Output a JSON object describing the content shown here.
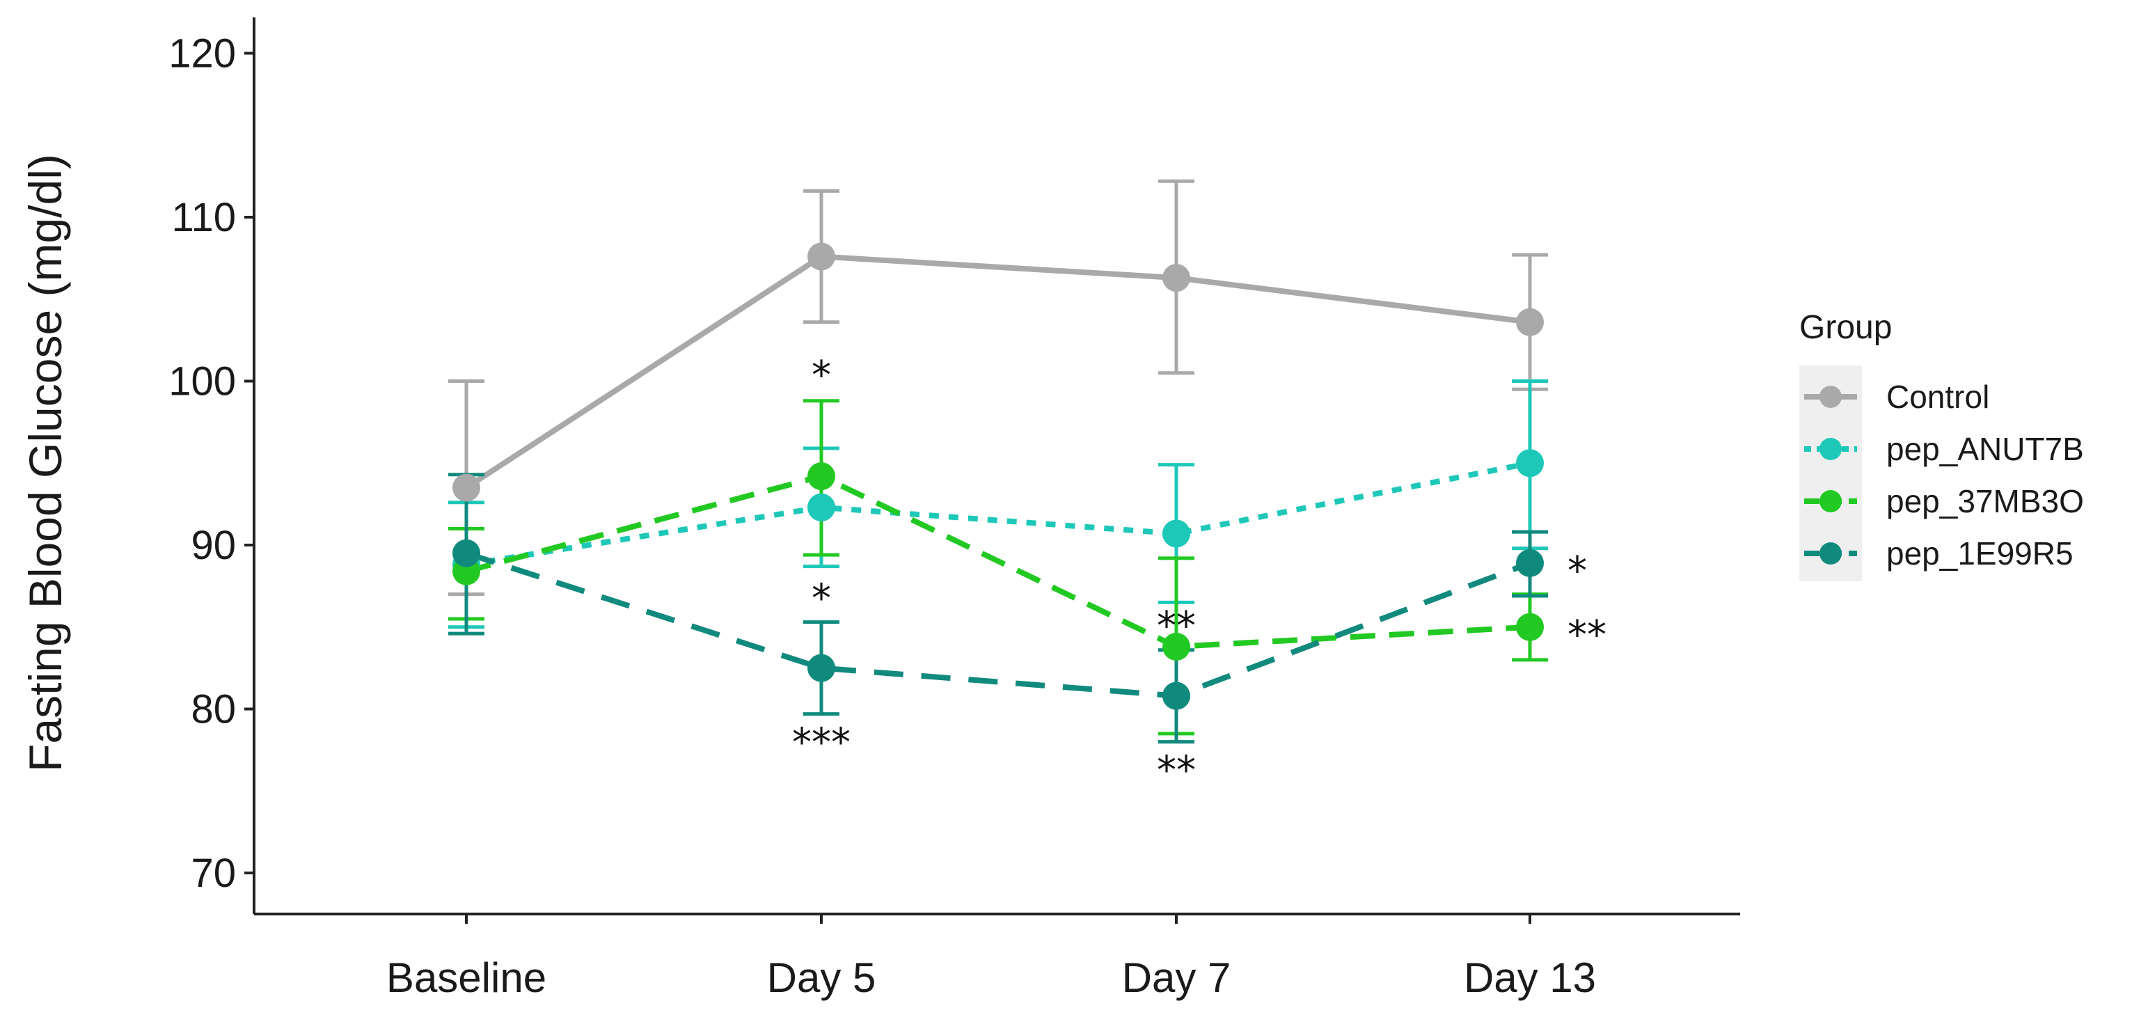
{
  "chart_data": {
    "type": "line",
    "ylabel": "Fasting Blood Glucose (mg/dl)",
    "xlabel": "",
    "categories": [
      "Baseline",
      "Day 5",
      "Day 7",
      "Day 13"
    ],
    "ylim": [
      67,
      122
    ],
    "yticks": [
      70,
      80,
      90,
      100,
      110,
      120
    ],
    "legend": {
      "title": "Group",
      "position": "right"
    },
    "series": [
      {
        "name": "Control",
        "color": "#a9a9a9",
        "linestyle": "solid",
        "values": [
          93.5,
          107.6,
          106.3,
          103.6
        ],
        "error_low": [
          87.0,
          103.6,
          100.5,
          99.5
        ],
        "error_high": [
          100.0,
          111.6,
          112.2,
          107.7
        ]
      },
      {
        "name": "pep_ANUT7B",
        "color": "#1ec8b8",
        "linestyle": "dotted",
        "values": [
          88.8,
          92.3,
          90.7,
          95.0
        ],
        "error_low": [
          85.0,
          88.7,
          86.5,
          89.8
        ],
        "error_high": [
          92.6,
          95.9,
          94.9,
          100.0
        ]
      },
      {
        "name": "pep_37MB3O",
        "color": "#22c922",
        "linestyle": "dashed",
        "values": [
          88.4,
          94.2,
          83.8,
          85.0
        ],
        "error_low": [
          85.5,
          89.4,
          78.5,
          83.0
        ],
        "error_high": [
          91.0,
          98.8,
          89.2,
          87.0
        ]
      },
      {
        "name": "pep_1E99R5",
        "color": "#118a7e",
        "linestyle": "longdash",
        "values": [
          89.5,
          82.5,
          80.8,
          88.9
        ],
        "error_low": [
          84.6,
          79.7,
          78.0,
          86.9
        ],
        "error_high": [
          94.3,
          85.3,
          83.6,
          90.8
        ]
      }
    ],
    "annotations": [
      {
        "text": "*",
        "category": "Day 5",
        "value": 98.8,
        "placement": "above"
      },
      {
        "text": "*",
        "category": "Day 5",
        "value": 88.5,
        "placement": "below"
      },
      {
        "text": "***",
        "category": "Day 5",
        "value": 79.7,
        "placement": "below"
      },
      {
        "text": "**",
        "category": "Day 7",
        "value": 83.5,
        "placement": "above"
      },
      {
        "text": "**",
        "category": "Day 7",
        "value": 78.0,
        "placement": "below"
      },
      {
        "text": "*",
        "category": "Day 13",
        "value": 88.9,
        "placement": "right"
      },
      {
        "text": "**",
        "category": "Day 13",
        "value": 85.0,
        "placement": "right"
      }
    ]
  }
}
